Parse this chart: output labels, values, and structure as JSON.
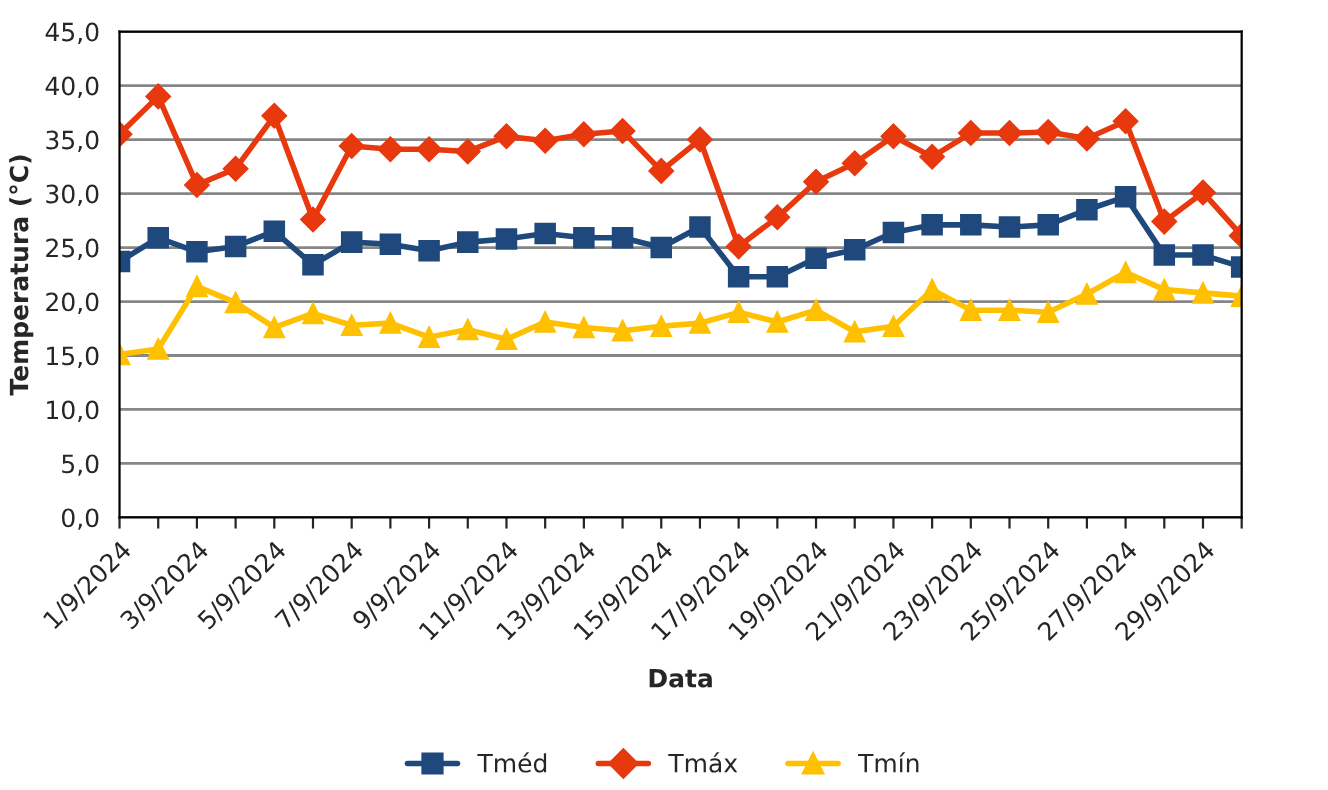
{
  "chart_data": {
    "type": "line",
    "xlabel": "Data",
    "ylabel": "Temperatura (°C)",
    "categories": [
      "1/9/2024",
      null,
      "3/9/2024",
      null,
      "5/9/2024",
      null,
      "7/9/2024",
      null,
      "9/9/2024",
      null,
      "11/9/2024",
      null,
      "13/9/2024",
      null,
      "15/9/2024",
      null,
      "17/9/2024",
      null,
      "19/9/2024",
      null,
      "21/9/2024",
      null,
      "23/9/2024",
      null,
      "25/9/2024",
      null,
      "27/9/2024",
      null,
      "29/9/2024",
      null
    ],
    "series": [
      {
        "name": "Tméd",
        "color": "#1f497d",
        "marker": "square",
        "values": [
          23.7,
          25.9,
          24.6,
          25.1,
          26.5,
          23.4,
          25.5,
          25.3,
          24.7,
          25.5,
          25.8,
          26.3,
          25.9,
          25.9,
          25.0,
          26.9,
          22.3,
          22.3,
          24.0,
          24.8,
          26.4,
          27.1,
          27.1,
          26.9,
          27.1,
          28.5,
          29.7,
          24.3,
          24.3,
          23.2
        ]
      },
      {
        "name": "Tmáx",
        "color": "#e8380d",
        "marker": "diamond",
        "values": [
          35.5,
          39.0,
          30.8,
          32.3,
          37.2,
          27.6,
          34.4,
          34.1,
          34.1,
          33.9,
          35.3,
          34.9,
          35.5,
          35.8,
          32.1,
          35.0,
          25.1,
          27.8,
          31.1,
          32.8,
          35.3,
          33.4,
          35.6,
          35.6,
          35.7,
          35.1,
          36.7,
          27.4,
          30.1,
          26.1
        ]
      },
      {
        "name": "Tmín",
        "color": "#ffc000",
        "marker": "triangle",
        "values": [
          15.1,
          15.6,
          21.4,
          19.9,
          17.6,
          18.9,
          17.8,
          18.0,
          16.7,
          17.4,
          16.5,
          18.1,
          17.6,
          17.3,
          17.7,
          18.0,
          19.0,
          18.1,
          19.2,
          17.2,
          17.7,
          21.1,
          19.2,
          19.2,
          19.0,
          20.7,
          22.7,
          21.1,
          20.8,
          20.5
        ]
      }
    ],
    "ylim": [
      0,
      45
    ],
    "yticks": [
      {
        "value": 0,
        "label": "0,0"
      },
      {
        "value": 5,
        "label": "5,0"
      },
      {
        "value": 10,
        "label": "10,0"
      },
      {
        "value": 15,
        "label": "15,0"
      },
      {
        "value": 20,
        "label": "20,0"
      },
      {
        "value": 25,
        "label": "25,0"
      },
      {
        "value": 30,
        "label": "30,0"
      },
      {
        "value": 35,
        "label": "35,0"
      },
      {
        "value": 40,
        "label": "40,0"
      },
      {
        "value": 45,
        "label": "45,0"
      }
    ],
    "grid": "y",
    "legend": "bottom",
    "line_style": "solid"
  }
}
